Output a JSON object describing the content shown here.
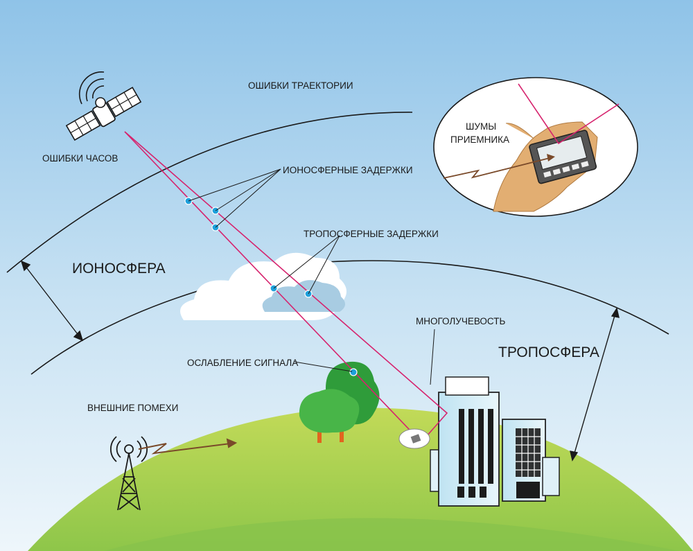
{
  "labels": {
    "trajectory_errors": "ОШИБКИ ТРАЕКТОРИИ",
    "clock_errors": "ОШИБКИ ЧАСОВ",
    "ionospheric_delays": "ИОНОСФЕРНЫЕ ЗАДЕРЖКИ",
    "tropospheric_delays": "ТРОПОСФЕРНЫЕ ЗАДЕРЖКИ",
    "ionosphere": "ИОНОСФЕРА",
    "troposphere": "ТРОПОСФЕРА",
    "multipath": "МНОГОЛУЧЕВОСТЬ",
    "signal_attenuation": "ОСЛАБЛЕНИЕ СИГНАЛА",
    "external_interference": "ВНЕШНИЕ ПОМЕХИ",
    "receiver_noise_line1": "ШУМЫ",
    "receiver_noise_line2": "ПРИЕМНИКА"
  },
  "icons": [
    "satellite-icon",
    "radio-tower-icon",
    "gps-receiver-icon",
    "building-icon",
    "tree-icon",
    "cloud-icon"
  ],
  "colors": {
    "sky_top": "#8fc3e8",
    "sky_bottom": "#e6f2fa",
    "signal_path": "#d6246e",
    "delay_point": "#1ea0dc",
    "ground_light": "#b9d65a",
    "ground_dark": "#7fc04a",
    "interference_arrow": "#7a4a2a"
  }
}
